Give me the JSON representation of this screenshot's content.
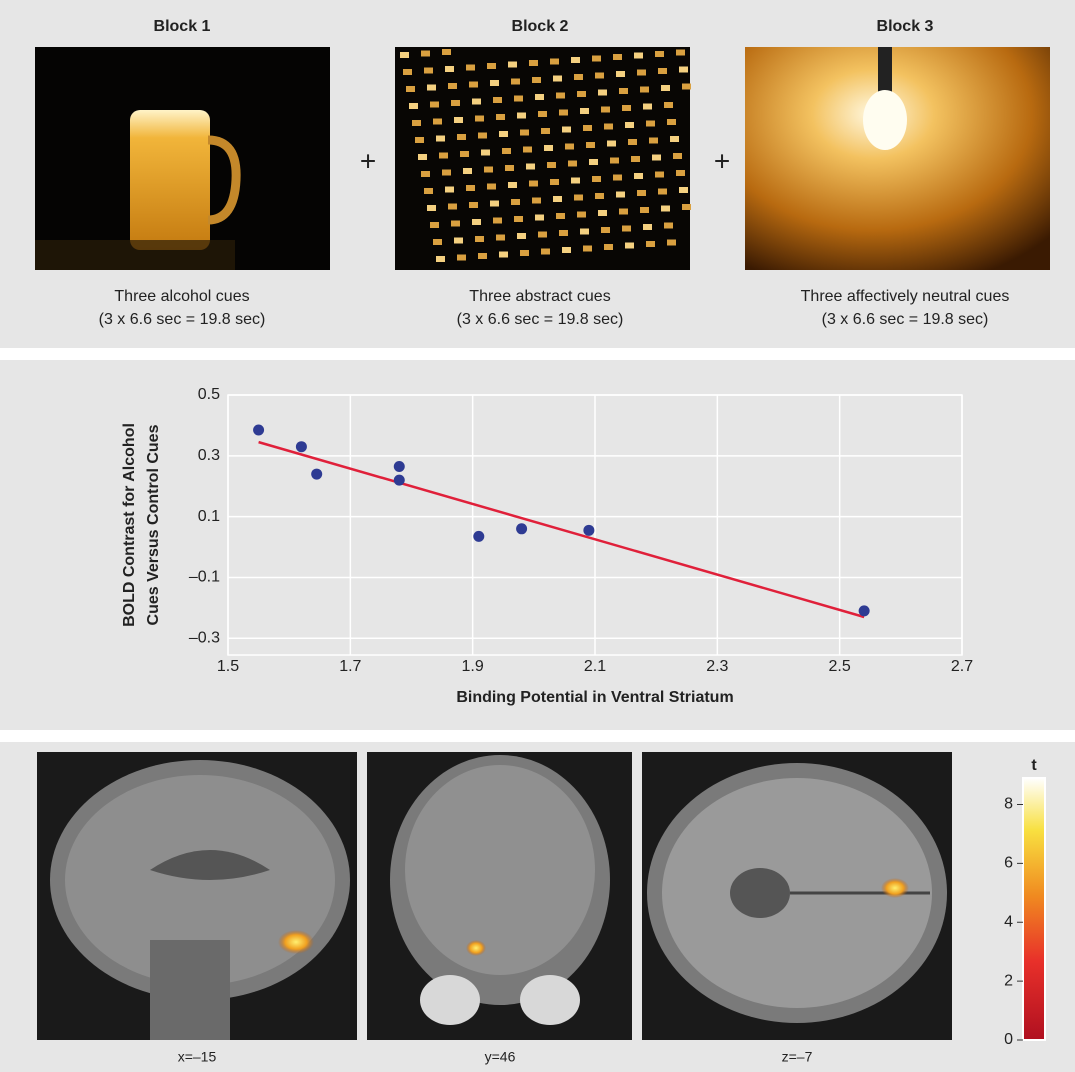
{
  "blocks": [
    {
      "title": "Block 1",
      "caption": "Three alcohol cues",
      "timing": "(3 x 6.6 sec = 19.8 sec)"
    },
    {
      "title": "Block 2",
      "caption": "Three abstract cues",
      "timing": "(3 x 6.6 sec = 19.8 sec)"
    },
    {
      "title": "Block 3",
      "caption": "Three affectively neutral cues",
      "timing": "(3 x 6.6 sec = 19.8 sec)"
    }
  ],
  "separators": [
    "+",
    "+"
  ],
  "chart_data": {
    "type": "scatter",
    "x_label": "Binding Potential in Ventral Striatum",
    "y_label": [
      "BOLD Contrast for Alcohol",
      "Cues Versus Control Cues"
    ],
    "x": [
      1.55,
      1.62,
      1.645,
      1.78,
      1.78,
      1.91,
      1.98,
      2.09,
      2.54
    ],
    "values": [
      0.385,
      0.33,
      0.24,
      0.265,
      0.22,
      0.035,
      0.06,
      0.055,
      -0.21
    ],
    "color": "#2e3b93",
    "trendline": {
      "x": [
        1.55,
        2.54
      ],
      "y": [
        0.345,
        -0.23
      ],
      "color": "#e0203a"
    },
    "xlim": [
      1.5,
      2.7
    ],
    "ylim": [
      -0.355,
      0.5
    ],
    "xticks": [
      1.5,
      1.7,
      1.9,
      2.1,
      2.3,
      2.5,
      2.7
    ],
    "yticks": [
      0.5,
      0.3,
      0.1,
      {
        "value": -0.1,
        "label": "–0.1"
      },
      {
        "value": -0.3,
        "label": "–0.3"
      }
    ],
    "grid": true
  },
  "brain_panel": {
    "slices": [
      "x=–15",
      "y=46",
      "z=–7"
    ],
    "colorbar": {
      "label": "t",
      "lim": [
        0,
        8.9
      ],
      "ticks": [
        0,
        2,
        4,
        6,
        8
      ]
    }
  }
}
